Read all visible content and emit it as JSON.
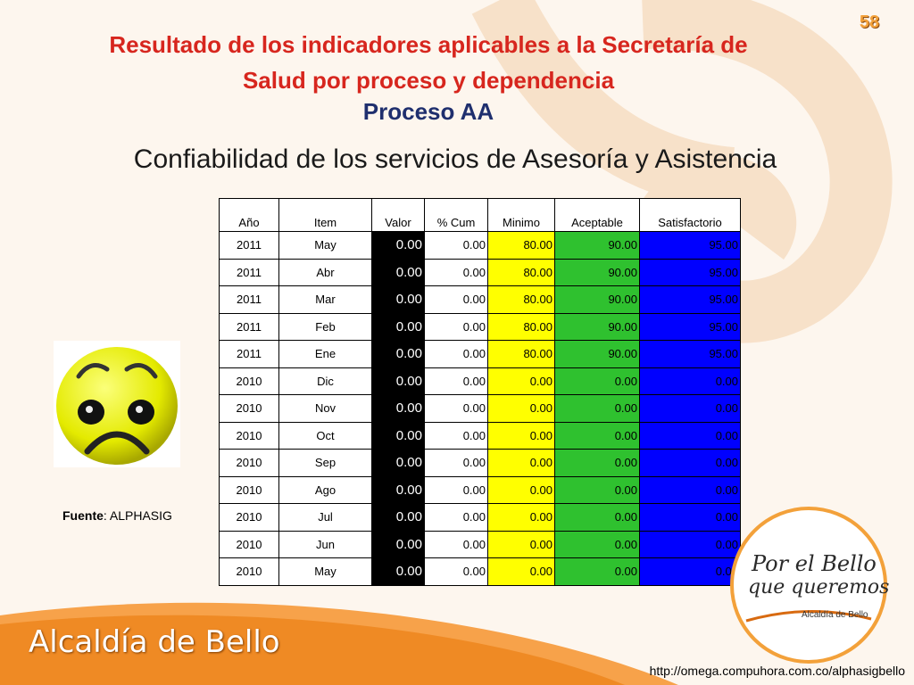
{
  "slide": {
    "page_number": "58",
    "title": "Resultado de los indicadores aplicables a la Secretaría de Salud por proceso y dependencia",
    "subtitle": "Proceso AA",
    "chart_title": "Confiabilidad de los servicios de Asesoría y Asistencia",
    "source_label": "Fuente",
    "source_value": ": ALPHASIG",
    "logo_text": "Alcaldía de Bello",
    "badge_line1": "Por el Bello",
    "badge_line2": "que queremos",
    "badge_line3": "Alcaldía de Bello",
    "url": "http://omega.compuhora.com.co/alphasigbello",
    "icons": [
      "sad-face-icon",
      "swirl-decoration"
    ],
    "colors": {
      "title": "#d7261e",
      "subtitle": "#1f2f6e",
      "valor": "#000000",
      "minimo": "#ffff00",
      "aceptable": "#2fc12f",
      "satisfactorio": "#0000ff",
      "accent": "#f3a13a"
    }
  },
  "table": {
    "headers": [
      "Año",
      "Item",
      "Valor",
      "% Cum",
      "Minimo",
      "Aceptable",
      "Satisfactorio"
    ],
    "rows": [
      [
        "2011",
        "May",
        "0.00",
        "0.00",
        "80.00",
        "90.00",
        "95.00"
      ],
      [
        "2011",
        "Abr",
        "0.00",
        "0.00",
        "80.00",
        "90.00",
        "95.00"
      ],
      [
        "2011",
        "Mar",
        "0.00",
        "0.00",
        "80.00",
        "90.00",
        "95.00"
      ],
      [
        "2011",
        "Feb",
        "0.00",
        "0.00",
        "80.00",
        "90.00",
        "95.00"
      ],
      [
        "2011",
        "Ene",
        "0.00",
        "0.00",
        "80.00",
        "90.00",
        "95.00"
      ],
      [
        "2010",
        "Dic",
        "0.00",
        "0.00",
        "0.00",
        "0.00",
        "0.00"
      ],
      [
        "2010",
        "Nov",
        "0.00",
        "0.00",
        "0.00",
        "0.00",
        "0.00"
      ],
      [
        "2010",
        "Oct",
        "0.00",
        "0.00",
        "0.00",
        "0.00",
        "0.00"
      ],
      [
        "2010",
        "Sep",
        "0.00",
        "0.00",
        "0.00",
        "0.00",
        "0.00"
      ],
      [
        "2010",
        "Ago",
        "0.00",
        "0.00",
        "0.00",
        "0.00",
        "0.00"
      ],
      [
        "2010",
        "Jul",
        "0.00",
        "0.00",
        "0.00",
        "0.00",
        "0.00"
      ],
      [
        "2010",
        "Jun",
        "0.00",
        "0.00",
        "0.00",
        "0.00",
        "0.00"
      ],
      [
        "2010",
        "May",
        "0.00",
        "0.00",
        "0.00",
        "0.00",
        "0.00"
      ]
    ]
  }
}
